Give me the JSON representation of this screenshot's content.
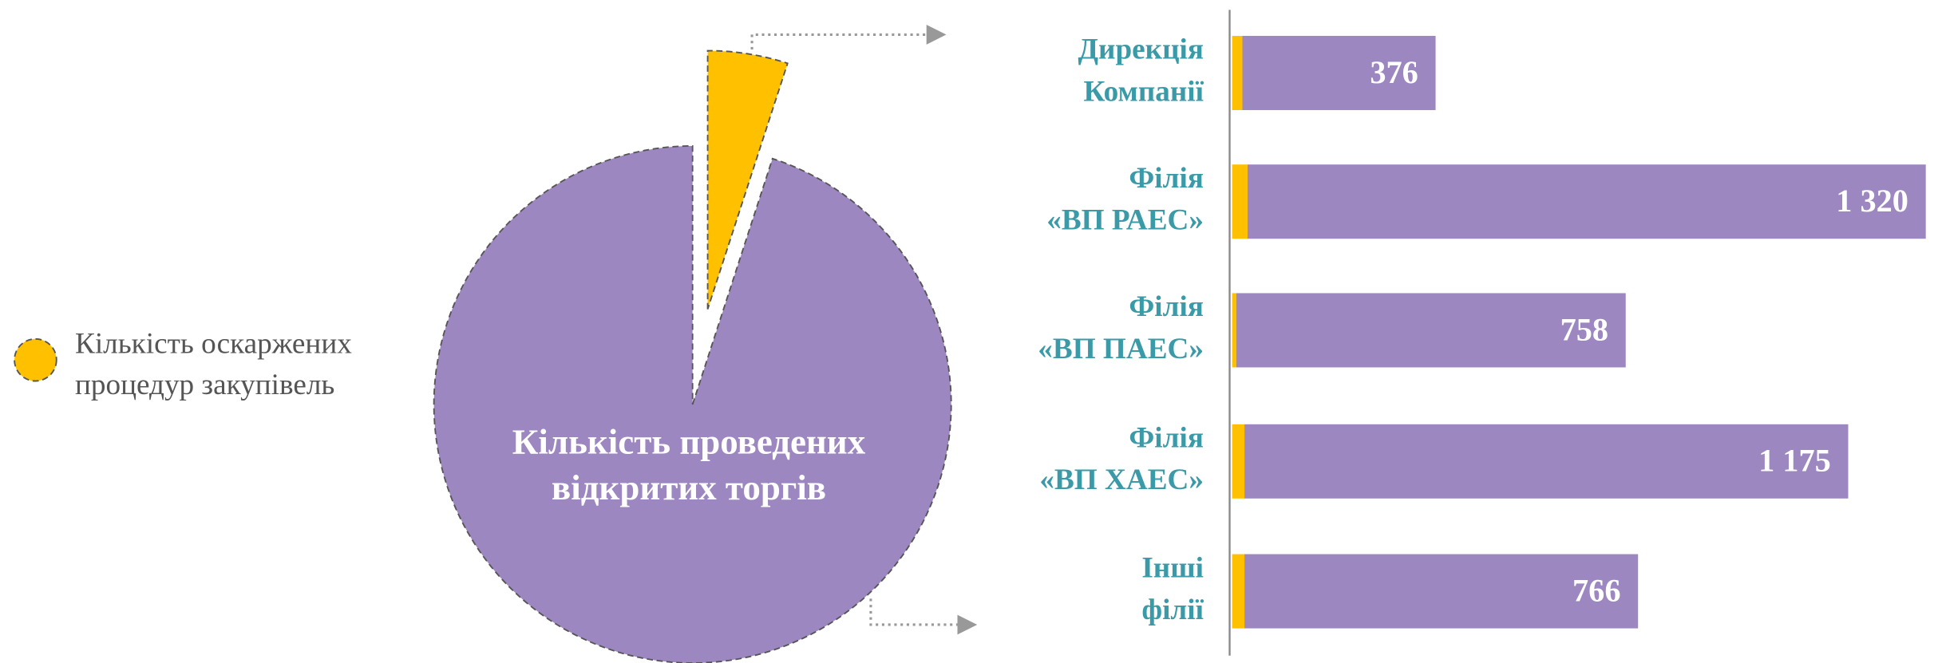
{
  "chart_data": [
    {
      "type": "pie",
      "labels": [
        [
          "Кількість оскаржених",
          "процедур закупівель"
        ],
        [
          "Кількість проведених",
          "відкритих торгів"
        ]
      ],
      "values": [
        5,
        95
      ],
      "colors": [
        "#ffc000",
        "#9d87c1"
      ],
      "explode": [
        true,
        false
      ]
    },
    {
      "type": "stacked-barh",
      "categories": [
        [
          "Дирекція",
          "Компанії"
        ],
        [
          "Філія",
          "«ВП РАЕС»"
        ],
        [
          "Філія",
          "«ВП ПАЕС»"
        ],
        [
          "Філія",
          "«ВП ХАЕС»"
        ],
        [
          "Інші",
          "філії"
        ]
      ],
      "series": [
        {
          "color": "#ffc000",
          "label_color": "#f5b800",
          "values": [
            20,
            30,
            8,
            24,
            24
          ]
        },
        {
          "color": "#9d87c1",
          "label_color": "#ffffff",
          "values": [
            376,
            1320,
            758,
            1175,
            766
          ],
          "value_labels": [
            "376",
            "1 320",
            "758",
            "1 175",
            "766"
          ]
        }
      ],
      "xlim": [
        0,
        1380
      ]
    }
  ]
}
